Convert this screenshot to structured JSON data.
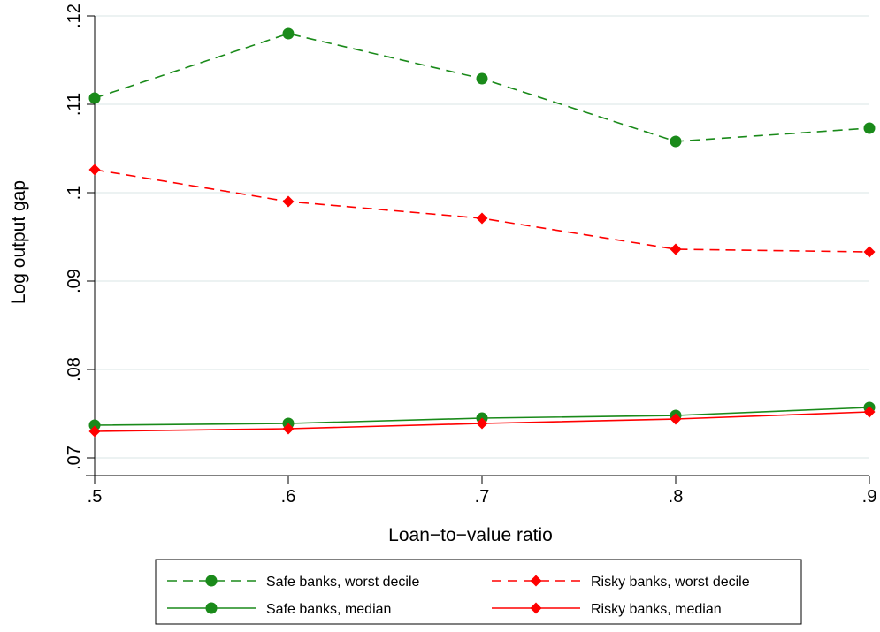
{
  "chart_data": {
    "type": "line",
    "title": "",
    "xlabel": "Loan−to−value ratio",
    "ylabel": "Log output gap",
    "x": [
      0.5,
      0.6,
      0.7,
      0.8,
      0.9
    ],
    "xlim": [
      0.5,
      0.9
    ],
    "ylim": [
      0.07,
      0.12
    ],
    "x_ticks": [
      {
        "value": 0.5,
        "label": ".5"
      },
      {
        "value": 0.6,
        "label": ".6"
      },
      {
        "value": 0.7,
        "label": ".7"
      },
      {
        "value": 0.8,
        "label": ".8"
      },
      {
        "value": 0.9,
        "label": ".9"
      }
    ],
    "y_ticks": [
      {
        "value": 0.07,
        "label": ".07"
      },
      {
        "value": 0.08,
        "label": ".08"
      },
      {
        "value": 0.09,
        "label": ".09"
      },
      {
        "value": 0.1,
        "label": ".1"
      },
      {
        "value": 0.11,
        "label": ".11"
      },
      {
        "value": 0.12,
        "label": ".12"
      }
    ],
    "grid": "horizontal",
    "legend_position": "bottom",
    "series": [
      {
        "name": "Safe banks, worst decile",
        "values": [
          0.1107,
          0.118,
          0.1129,
          0.1058,
          0.1073
        ],
        "color": "#1a8a1a",
        "style": "dashed",
        "marker": "circle"
      },
      {
        "name": "Risky banks, worst decile",
        "values": [
          0.1026,
          0.099,
          0.0971,
          0.0936,
          0.0933
        ],
        "color": "#ff0000",
        "style": "dashed",
        "marker": "diamond"
      },
      {
        "name": "Safe banks, median",
        "values": [
          0.0737,
          0.0739,
          0.0745,
          0.0748,
          0.0757
        ],
        "color": "#1a8a1a",
        "style": "solid",
        "marker": "circle"
      },
      {
        "name": "Risky banks, median",
        "values": [
          0.073,
          0.0733,
          0.0739,
          0.0744,
          0.0752
        ],
        "color": "#ff0000",
        "style": "solid",
        "marker": "diamond"
      }
    ]
  }
}
